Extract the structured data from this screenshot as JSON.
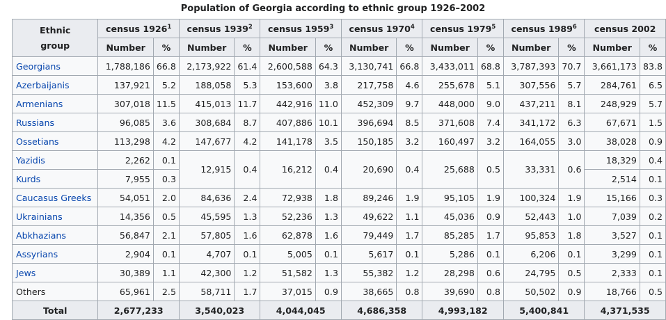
{
  "caption": "Population of Georgia according to ethnic group 1926–2002",
  "header": {
    "ethnic_group_line1": "Ethnic",
    "ethnic_group_line2": "group",
    "censuses": [
      {
        "label": "census 1926",
        "sup": "1"
      },
      {
        "label": "census 1939",
        "sup": "2"
      },
      {
        "label": "census 1959",
        "sup": "3"
      },
      {
        "label": "census 1970",
        "sup": "4"
      },
      {
        "label": "census 1979",
        "sup": "5"
      },
      {
        "label": "census 1989",
        "sup": "6"
      },
      {
        "label": "census 2002",
        "sup": ""
      }
    ],
    "number_label": "Number",
    "percent_label": "%"
  },
  "rows": [
    {
      "name": "Georgians",
      "link": true,
      "values": [
        [
          "1,788,186",
          "66.8"
        ],
        [
          "2,173,922",
          "61.4"
        ],
        [
          "2,600,588",
          "64.3"
        ],
        [
          "3,130,741",
          "66.8"
        ],
        [
          "3,433,011",
          "68.8"
        ],
        [
          "3,787,393",
          "70.7"
        ],
        [
          "3,661,173",
          "83.8"
        ]
      ]
    },
    {
      "name": "Azerbaijanis",
      "link": true,
      "values": [
        [
          "137,921",
          "5.2"
        ],
        [
          "188,058",
          "5.3"
        ],
        [
          "153,600",
          "3.8"
        ],
        [
          "217,758",
          "4.6"
        ],
        [
          "255,678",
          "5.1"
        ],
        [
          "307,556",
          "5.7"
        ],
        [
          "284,761",
          "6.5"
        ]
      ]
    },
    {
      "name": "Armenians",
      "link": true,
      "values": [
        [
          "307,018",
          "11.5"
        ],
        [
          "415,013",
          "11.7"
        ],
        [
          "442,916",
          "11.0"
        ],
        [
          "452,309",
          "9.7"
        ],
        [
          "448,000",
          "9.0"
        ],
        [
          "437,211",
          "8.1"
        ],
        [
          "248,929",
          "5.7"
        ]
      ]
    },
    {
      "name": "Russians",
      "link": true,
      "values": [
        [
          "96,085",
          "3.6"
        ],
        [
          "308,684",
          "8.7"
        ],
        [
          "407,886",
          "10.1"
        ],
        [
          "396,694",
          "8.5"
        ],
        [
          "371,608",
          "7.4"
        ],
        [
          "341,172",
          "6.3"
        ],
        [
          "67,671",
          "1.5"
        ]
      ]
    },
    {
      "name": "Ossetians",
      "link": true,
      "values": [
        [
          "113,298",
          "4.2"
        ],
        [
          "147,677",
          "4.2"
        ],
        [
          "141,178",
          "3.5"
        ],
        [
          "150,185",
          "3.2"
        ],
        [
          "160,497",
          "3.2"
        ],
        [
          "164,055",
          "3.0"
        ],
        [
          "38,028",
          "0.9"
        ]
      ]
    },
    {
      "name": "Yazidis",
      "link": true
    },
    {
      "name": "Kurds",
      "link": true
    },
    {
      "name": "Caucasus Greeks",
      "link": true,
      "values": [
        [
          "54,051",
          "2.0"
        ],
        [
          "84,636",
          "2.4"
        ],
        [
          "72,938",
          "1.8"
        ],
        [
          "89,246",
          "1.9"
        ],
        [
          "95,105",
          "1.9"
        ],
        [
          "100,324",
          "1.9"
        ],
        [
          "15,166",
          "0.3"
        ]
      ]
    },
    {
      "name": "Ukrainians",
      "link": true,
      "values": [
        [
          "14,356",
          "0.5"
        ],
        [
          "45,595",
          "1.3"
        ],
        [
          "52,236",
          "1.3"
        ],
        [
          "49,622",
          "1.1"
        ],
        [
          "45,036",
          "0.9"
        ],
        [
          "52,443",
          "1.0"
        ],
        [
          "7,039",
          "0.2"
        ]
      ]
    },
    {
      "name": "Abkhazians",
      "link": true,
      "values": [
        [
          "56,847",
          "2.1"
        ],
        [
          "57,805",
          "1.6"
        ],
        [
          "62,878",
          "1.6"
        ],
        [
          "79,449",
          "1.7"
        ],
        [
          "85,285",
          "1.7"
        ],
        [
          "95,853",
          "1.8"
        ],
        [
          "3,527",
          "0.1"
        ]
      ]
    },
    {
      "name": "Assyrians",
      "link": true,
      "values": [
        [
          "2,904",
          "0.1"
        ],
        [
          "4,707",
          "0.1"
        ],
        [
          "5,005",
          "0.1"
        ],
        [
          "5,617",
          "0.1"
        ],
        [
          "5,286",
          "0.1"
        ],
        [
          "6,206",
          "0.1"
        ],
        [
          "3,299",
          "0.1"
        ]
      ]
    },
    {
      "name": "Jews",
      "link": true,
      "values": [
        [
          "30,389",
          "1.1"
        ],
        [
          "42,300",
          "1.2"
        ],
        [
          "51,582",
          "1.3"
        ],
        [
          "55,382",
          "1.2"
        ],
        [
          "28,298",
          "0.6"
        ],
        [
          "24,795",
          "0.5"
        ],
        [
          "2,333",
          "0.1"
        ]
      ]
    },
    {
      "name": "Others",
      "link": false,
      "values": [
        [
          "65,961",
          "2.5"
        ],
        [
          "58,711",
          "1.7"
        ],
        [
          "37,015",
          "0.9"
        ],
        [
          "38,665",
          "0.8"
        ],
        [
          "39,690",
          "0.8"
        ],
        [
          "50,502",
          "0.9"
        ],
        [
          "18,766",
          "0.5"
        ]
      ]
    }
  ],
  "yazidis_kurds": {
    "yazidis_1926": [
      "2,262",
      "0.1"
    ],
    "kurds_1926": [
      "7,955",
      "0.3"
    ],
    "merged": [
      [
        "12,915",
        "0.4"
      ],
      [
        "16,212",
        "0.4"
      ],
      [
        "20,690",
        "0.4"
      ],
      [
        "25,688",
        "0.5"
      ],
      [
        "33,331",
        "0.6"
      ]
    ],
    "yazidis_2002": [
      "18,329",
      "0.4"
    ],
    "kurds_2002": [
      "2,514",
      "0.1"
    ]
  },
  "total": {
    "label": "Total",
    "values": [
      "2,677,233",
      "3,540,023",
      "4,044,045",
      "4,686,358",
      "4,993,182",
      "5,400,841",
      "4,371,535"
    ]
  }
}
